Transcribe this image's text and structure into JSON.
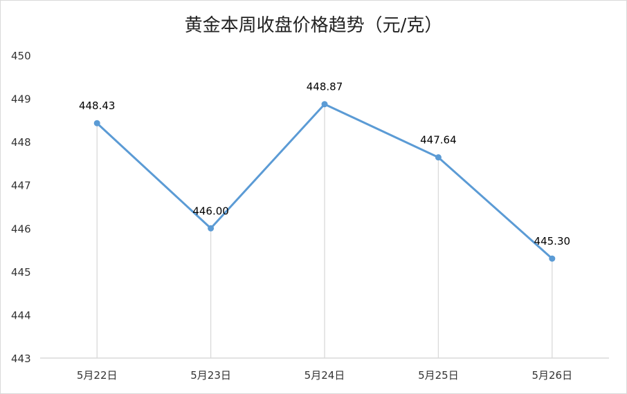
{
  "chart_data": {
    "type": "line",
    "title": "黄金本周收盘价格趋势（元/克）",
    "xlabel": "",
    "ylabel": "",
    "categories": [
      "5月22日",
      "5月23日",
      "5月24日",
      "5月25日",
      "5月26日"
    ],
    "values": [
      448.43,
      446.0,
      448.87,
      447.64,
      445.3
    ],
    "data_labels": [
      "448.43",
      "446.00",
      "448.87",
      "447.64",
      "445.30"
    ],
    "ylim": [
      443,
      450
    ],
    "yticks": [
      "443",
      "444",
      "445",
      "446",
      "447",
      "448",
      "449",
      "450"
    ],
    "grid": false,
    "drop_lines": true,
    "legend": "none",
    "colors": {
      "line": "#5b9bd5",
      "drop_line": "#d9d9d9",
      "axis": "#d9d9d9"
    }
  }
}
